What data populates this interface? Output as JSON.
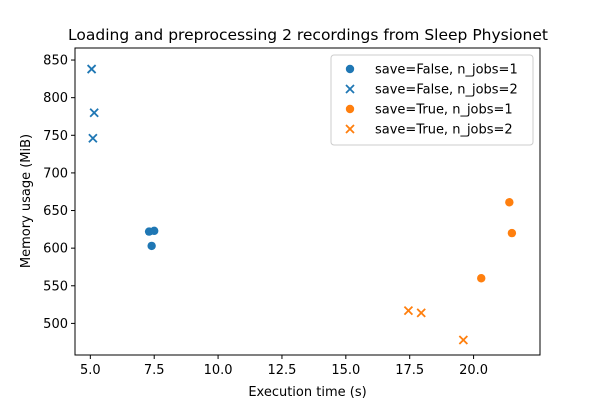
{
  "chart_data": {
    "type": "scatter",
    "title": "Loading and preprocessing 2 recordings from Sleep Physionet",
    "xlabel": "Execution time (s)",
    "ylabel": "Memory usage (MiB)",
    "xlim": [
      4.4,
      22.6
    ],
    "ylim": [
      458,
      866
    ],
    "xticks": [
      5.0,
      7.5,
      10.0,
      12.5,
      15.0,
      17.5,
      20.0
    ],
    "xtick_labels": [
      "5.0",
      "7.5",
      "10.0",
      "12.5",
      "15.0",
      "17.5",
      "20.0"
    ],
    "yticks": [
      500,
      550,
      600,
      650,
      700,
      750,
      800,
      850
    ],
    "ytick_labels": [
      "500",
      "550",
      "600",
      "650",
      "700",
      "750",
      "800",
      "850"
    ],
    "legend_position": "top-right",
    "grid": false,
    "series": [
      {
        "name": "save=False, n_jobs=1",
        "marker": "circle",
        "color": "#1f77b4",
        "points": [
          {
            "x": 7.3,
            "y": 622
          },
          {
            "x": 7.5,
            "y": 623
          },
          {
            "x": 7.4,
            "y": 603
          }
        ]
      },
      {
        "name": "save=False, n_jobs=2",
        "marker": "x",
        "color": "#1f77b4",
        "points": [
          {
            "x": 5.05,
            "y": 838
          },
          {
            "x": 5.15,
            "y": 780
          },
          {
            "x": 5.1,
            "y": 746
          }
        ]
      },
      {
        "name": "save=True, n_jobs=1",
        "marker": "circle",
        "color": "#ff7f0e",
        "points": [
          {
            "x": 21.4,
            "y": 661
          },
          {
            "x": 21.5,
            "y": 620
          },
          {
            "x": 20.3,
            "y": 560
          }
        ]
      },
      {
        "name": "save=True, n_jobs=2",
        "marker": "x",
        "color": "#ff7f0e",
        "points": [
          {
            "x": 17.45,
            "y": 517
          },
          {
            "x": 17.95,
            "y": 514
          },
          {
            "x": 19.6,
            "y": 478
          }
        ]
      }
    ]
  }
}
